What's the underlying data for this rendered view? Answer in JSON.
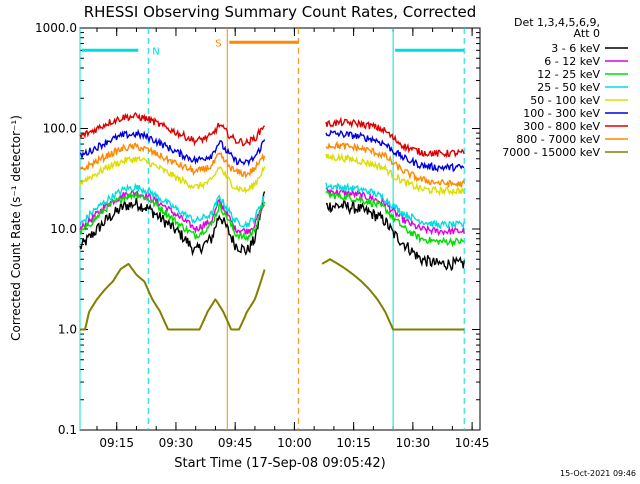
{
  "chart_data": {
    "type": "line",
    "title": "RHESSI Observing Summary Count Rates, Corrected",
    "xlabel": "Start Time (17-Sep-08 09:05:42)",
    "ylabel": "Corrected Count Rate (s⁻¹ detector⁻¹)",
    "y_scale": "log",
    "ylim": [
      0.1,
      1000
    ],
    "y_ticks": [
      {
        "value": 0.1,
        "label": "0.1"
      },
      {
        "value": 1,
        "label": "1.0"
      },
      {
        "value": 10,
        "label": "10.0"
      },
      {
        "value": 100,
        "label": "100.0"
      },
      {
        "value": 1000,
        "label": "1000.0"
      }
    ],
    "xlim": [
      "09:05:42",
      "10:47:00"
    ],
    "x_ticks": [
      "09:15",
      "09:30",
      "09:45",
      "10:00",
      "10:15",
      "10:30",
      "10:45"
    ],
    "grid": false,
    "legend_header": [
      "Det 1,3,4,5,6,9,",
      "Att 0"
    ],
    "legend_position": "right",
    "series": [
      {
        "name": "3 - 6 keV",
        "color": "#000000",
        "segments": [
          {
            "t": [
              "09:05:42",
              "09:09:00",
              "09:13:00",
              "09:17:00",
              "09:20:00",
              "09:23:00",
              "09:27:00",
              "09:31:00",
              "09:35:00",
              "09:39:00",
              "09:41:00",
              "09:43:00",
              "09:45:00",
              "09:48:00",
              "09:50:00",
              "09:51:00",
              "09:52:30"
            ],
            "v": [
              6.5,
              9,
              13,
              17,
              18,
              16,
              12,
              9,
              6,
              8,
              14,
              10,
              7,
              6,
              8,
              12,
              24
            ]
          },
          {
            "t": [
              "10:08:00",
              "10:12:00",
              "10:16:00",
              "10:20:00",
              "10:23:00",
              "10:25:00",
              "10:28:00",
              "10:32:00",
              "10:36:00",
              "10:40:00",
              "10:43:00"
            ],
            "v": [
              17,
              17,
              16,
              14,
              12,
              9,
              7,
              5,
              4.5,
              4.5,
              4.5
            ]
          }
        ]
      },
      {
        "name": "6 - 12 keV",
        "color": "#e000e0",
        "segments": [
          {
            "t": [
              "09:05:42",
              "09:09:00",
              "09:13:00",
              "09:17:00",
              "09:20:00",
              "09:23:00",
              "09:27:00",
              "09:31:00",
              "09:35:00",
              "09:39:00",
              "09:41:00",
              "09:43:00",
              "09:45:00",
              "09:48:00",
              "09:50:00",
              "09:51:00",
              "09:52:30"
            ],
            "v": [
              10,
              13,
              18,
              22,
              23,
              21,
              17,
              13,
              10,
              12,
              19,
              14,
              10,
              9.5,
              11,
              14,
              18
            ]
          },
          {
            "t": [
              "10:08:00",
              "10:12:00",
              "10:16:00",
              "10:20:00",
              "10:23:00",
              "10:25:00",
              "10:28:00",
              "10:32:00",
              "10:36:00",
              "10:40:00",
              "10:43:00"
            ],
            "v": [
              24,
              23,
              22,
              20,
              18,
              15,
              12,
              10,
              9.5,
              9.5,
              9.5
            ]
          }
        ]
      },
      {
        "name": "12 - 25 keV",
        "color": "#00dd00",
        "segments": [
          {
            "t": [
              "09:05:42",
              "09:09:00",
              "09:13:00",
              "09:17:00",
              "09:20:00",
              "09:23:00",
              "09:27:00",
              "09:31:00",
              "09:35:00",
              "09:39:00",
              "09:41:00",
              "09:43:00",
              "09:45:00",
              "09:48:00",
              "09:50:00",
              "09:51:00",
              "09:52:30"
            ],
            "v": [
              9,
              12,
              17,
              21,
              22,
              20,
              15,
              11,
              8.5,
              11,
              17,
              13,
              9,
              8,
              10,
              13,
              20
            ]
          },
          {
            "t": [
              "10:08:00",
              "10:12:00",
              "10:16:00",
              "10:20:00",
              "10:23:00",
              "10:25:00",
              "10:28:00",
              "10:32:00",
              "10:36:00",
              "10:40:00",
              "10:43:00"
            ],
            "v": [
              22,
              21,
              20,
              18,
              16,
              13,
              10,
              8,
              7.5,
              7.5,
              7.5
            ]
          }
        ]
      },
      {
        "name": "25 - 50 keV",
        "color": "#00dddd",
        "segments": [
          {
            "t": [
              "09:05:42",
              "09:09:00",
              "09:13:00",
              "09:17:00",
              "09:20:00",
              "09:23:00",
              "09:27:00",
              "09:31:00",
              "09:35:00",
              "09:39:00",
              "09:41:00",
              "09:43:00",
              "09:45:00",
              "09:48:00",
              "09:50:00",
              "09:51:00",
              "09:52:30"
            ],
            "v": [
              11,
              15,
              20,
              25,
              26,
              24,
              19,
              15,
              12,
              14,
              21,
              16,
              12,
              11,
              13,
              16,
              22
            ]
          },
          {
            "t": [
              "10:08:00",
              "10:12:00",
              "10:16:00",
              "10:20:00",
              "10:23:00",
              "10:25:00",
              "10:28:00",
              "10:32:00",
              "10:36:00",
              "10:40:00",
              "10:43:00"
            ],
            "v": [
              27,
              26,
              25,
              23,
              20,
              17,
              14,
              12,
              11,
              11,
              11
            ]
          }
        ]
      },
      {
        "name": "50 - 100 keV",
        "color": "#dddd00",
        "segments": [
          {
            "t": [
              "09:05:42",
              "09:09:00",
              "09:13:00",
              "09:17:00",
              "09:20:00",
              "09:23:00",
              "09:27:00",
              "09:31:00",
              "09:35:00",
              "09:39:00",
              "09:41:00",
              "09:43:00",
              "09:45:00",
              "09:48:00",
              "09:50:00",
              "09:51:00",
              "09:52:30"
            ],
            "v": [
              29,
              34,
              42,
              48,
              50,
              46,
              38,
              31,
              26,
              30,
              42,
              32,
              26,
              24,
              28,
              33,
              42
            ]
          },
          {
            "t": [
              "10:08:00",
              "10:12:00",
              "10:16:00",
              "10:20:00",
              "10:23:00",
              "10:25:00",
              "10:28:00",
              "10:32:00",
              "10:36:00",
              "10:40:00",
              "10:43:00"
            ],
            "v": [
              52,
              51,
              48,
              44,
              40,
              34,
              29,
              25,
              24,
              24,
              24
            ]
          }
        ]
      },
      {
        "name": "100 - 300 keV",
        "color": "#0000dd",
        "segments": [
          {
            "t": [
              "09:05:42",
              "09:09:00",
              "09:13:00",
              "09:17:00",
              "09:20:00",
              "09:23:00",
              "09:27:00",
              "09:31:00",
              "09:35:00",
              "09:39:00",
              "09:41:00",
              "09:43:00",
              "09:45:00",
              "09:48:00",
              "09:50:00",
              "09:51:00",
              "09:52:30"
            ],
            "v": [
              53,
              62,
              76,
              86,
              88,
              82,
              68,
              56,
              48,
              54,
              74,
              58,
              48,
              45,
              52,
              60,
              78
            ]
          },
          {
            "t": [
              "10:08:00",
              "10:12:00",
              "10:16:00",
              "10:20:00",
              "10:23:00",
              "10:25:00",
              "10:28:00",
              "10:32:00",
              "10:36:00",
              "10:40:00",
              "10:43:00"
            ],
            "v": [
              90,
              88,
              84,
              78,
              70,
              60,
              50,
              43,
              41,
              41,
              41
            ]
          }
        ]
      },
      {
        "name": "300 - 800 keV",
        "color": "#dd0000",
        "segments": [
          {
            "t": [
              "09:05:42",
              "09:09:00",
              "09:13:00",
              "09:17:00",
              "09:20:00",
              "09:23:00",
              "09:27:00",
              "09:31:00",
              "09:35:00",
              "09:39:00",
              "09:41:00",
              "09:43:00",
              "09:45:00",
              "09:48:00",
              "09:50:00",
              "09:51:00",
              "09:52:30"
            ],
            "v": [
              83,
              95,
              115,
              130,
              132,
              124,
              104,
              88,
              75,
              84,
              110,
              90,
              76,
              72,
              80,
              90,
              112
            ]
          },
          {
            "t": [
              "10:08:00",
              "10:12:00",
              "10:16:00",
              "10:20:00",
              "10:23:00",
              "10:25:00",
              "10:28:00",
              "10:32:00",
              "10:36:00",
              "10:40:00",
              "10:43:00"
            ],
            "v": [
              110,
              115,
              112,
              105,
              95,
              80,
              66,
              58,
              56,
              57,
              57
            ]
          }
        ]
      },
      {
        "name": "800 - 7000 keV",
        "color": "#ff8800",
        "segments": [
          {
            "t": [
              "09:05:42",
              "09:09:00",
              "09:13:00",
              "09:17:00",
              "09:20:00",
              "09:23:00",
              "09:27:00",
              "09:31:00",
              "09:35:00",
              "09:39:00",
              "09:41:00",
              "09:43:00",
              "09:45:00",
              "09:48:00",
              "09:50:00",
              "09:51:00",
              "09:52:30"
            ],
            "v": [
              38,
              45,
              55,
              64,
              66,
              61,
              51,
              43,
              37,
              42,
              55,
              44,
              37,
              35,
              40,
              45,
              55
            ]
          },
          {
            "t": [
              "10:08:00",
              "10:12:00",
              "10:16:00",
              "10:20:00",
              "10:23:00",
              "10:25:00",
              "10:28:00",
              "10:32:00",
              "10:36:00",
              "10:40:00",
              "10:43:00"
            ],
            "v": [
              68,
              67,
              64,
              59,
              53,
              45,
              37,
              31,
              29,
              28,
              28
            ]
          }
        ]
      },
      {
        "name": "7000 - 15000 keV",
        "color": "#808000",
        "segments": [
          {
            "t": [
              "09:05:42",
              "09:07:00",
              "09:08:00",
              "09:10:00",
              "09:12:00",
              "09:14:00",
              "09:16:00",
              "09:18:00",
              "09:20:00",
              "09:22:00",
              "09:24:00",
              "09:26:00",
              "09:28:00",
              "09:30:00",
              "09:36:00",
              "09:38:00",
              "09:40:00",
              "09:42:00",
              "09:44:00",
              "09:46:00",
              "09:48:00",
              "09:50:00",
              "09:51:30",
              "09:52:30"
            ],
            "v": [
              1,
              1,
              1.5,
              2,
              2.5,
              3,
              4,
              4.5,
              3.5,
              3,
              2,
              1.5,
              1,
              1,
              1,
              1.5,
              2,
              1.5,
              1,
              1,
              1.5,
              2,
              3,
              4
            ]
          },
          {
            "t": [
              "10:07:00",
              "10:09:00",
              "10:11:00",
              "10:13:00",
              "10:15:00",
              "10:17:00",
              "10:19:00",
              "10:21:00",
              "10:23:00",
              "10:25:00",
              "10:27:00",
              "10:30:00",
              "10:35:00",
              "10:40:00",
              "10:43:00"
            ],
            "v": [
              4.5,
              5,
              4.5,
              4,
              3.5,
              3,
              2.5,
              2,
              1.5,
              1,
              1,
              1,
              1,
              1,
              1
            ]
          }
        ]
      }
    ],
    "annotations": [
      {
        "label": "N",
        "kind": "night",
        "color": "#00dddd",
        "t_start": "09:05:42",
        "t_end": "09:23:00",
        "solid_at": "09:05:42",
        "dashed_at": "09:23:00"
      },
      {
        "label": "",
        "kind": "night",
        "color": "#00dddd",
        "t_start": "10:25:00",
        "t_end": "10:43:00",
        "solid_at": "10:25:00",
        "dashed_at": "10:43:00"
      },
      {
        "label": "S",
        "kind": "saa",
        "color": "#ff8800",
        "t_start": "09:43:00",
        "t_end": "10:01:00",
        "solid_at": "09:43:00",
        "dashed_at": "10:01:00"
      }
    ],
    "bar_level": 600
  },
  "footer": {
    "timestamp": "15-Oct-2021 09:46"
  }
}
